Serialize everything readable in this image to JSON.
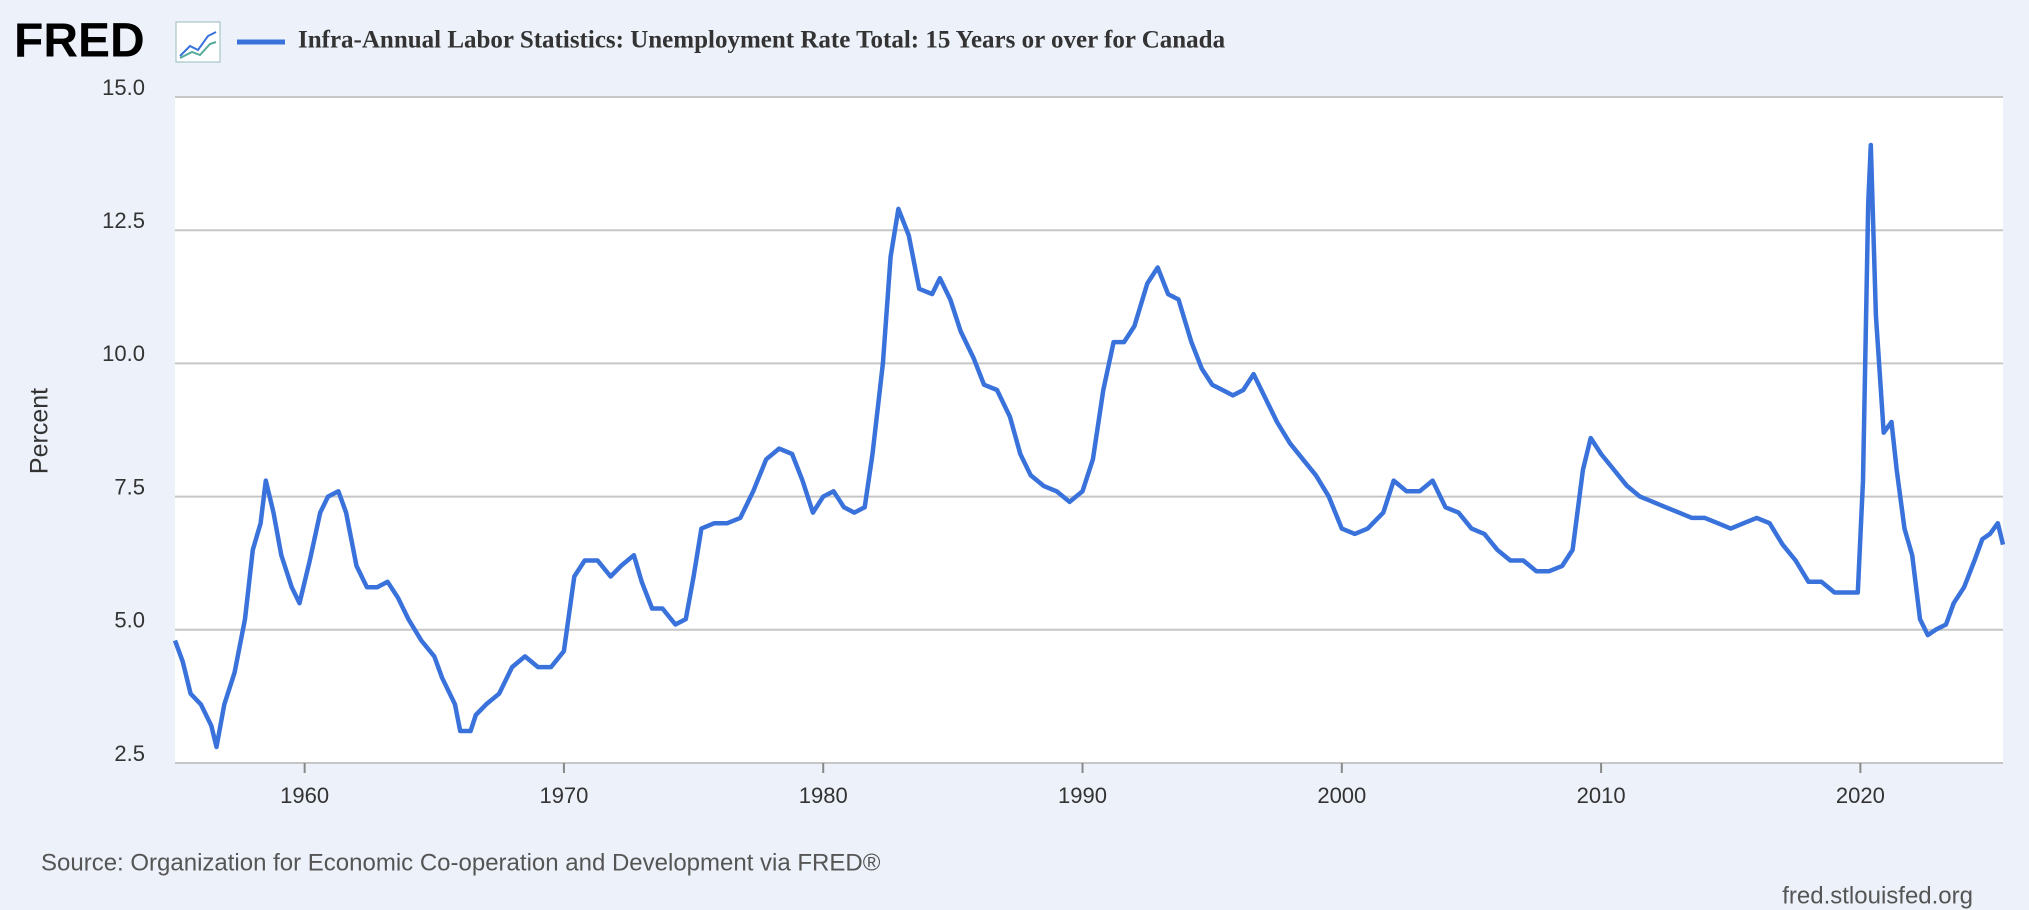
{
  "logo": "FRED",
  "chart_data": {
    "type": "line",
    "title": "Infra-Annual Labor Statistics: Unemployment Rate Total: 15 Years or over for Canada",
    "y_label": "Percent",
    "source": "Source: Organization for Economic Co-operation and Development via FRED®",
    "url": "fred.stlouisfed.org",
    "grid": true,
    "xlim": [
      1955,
      2025.5
    ],
    "xticks": [
      1960,
      1970,
      1980,
      1990,
      2000,
      2010,
      2020
    ],
    "ylim": [
      2.5,
      15
    ],
    "yticks": [
      2.5,
      {
        "value": 5,
        "label": "5.0"
      },
      7.5,
      {
        "value": 10,
        "label": "10.0"
      },
      12.5,
      {
        "value": 15,
        "label": "15.0"
      }
    ],
    "x": [
      1955.0,
      1955.3,
      1955.6,
      1956.0,
      1956.4,
      1956.6,
      1956.9,
      1957.3,
      1957.7,
      1958.0,
      1958.3,
      1958.5,
      1958.8,
      1959.1,
      1959.5,
      1959.8,
      1960.2,
      1960.6,
      1960.9,
      1961.3,
      1961.6,
      1962.0,
      1962.4,
      1962.8,
      1963.2,
      1963.6,
      1964.0,
      1964.5,
      1965.0,
      1965.3,
      1965.8,
      1966.0,
      1966.4,
      1966.6,
      1967.0,
      1967.5,
      1968.0,
      1968.5,
      1969.0,
      1969.5,
      1970.0,
      1970.4,
      1970.8,
      1971.3,
      1971.8,
      1972.2,
      1972.7,
      1973.0,
      1973.4,
      1973.8,
      1974.3,
      1974.7,
      1975.0,
      1975.3,
      1975.8,
      1976.3,
      1976.8,
      1977.3,
      1977.8,
      1978.3,
      1978.8,
      1979.2,
      1979.6,
      1980.0,
      1980.4,
      1980.8,
      1981.2,
      1981.6,
      1981.9,
      1982.3,
      1982.6,
      1982.9,
      1983.3,
      1983.7,
      1984.2,
      1984.5,
      1984.9,
      1985.3,
      1985.8,
      1986.2,
      1986.7,
      1987.2,
      1987.6,
      1988.0,
      1988.5,
      1989.0,
      1989.5,
      1990.0,
      1990.4,
      1990.8,
      1991.2,
      1991.6,
      1992.0,
      1992.5,
      1992.9,
      1993.3,
      1993.7,
      1994.2,
      1994.6,
      1995.0,
      1995.4,
      1995.8,
      1996.2,
      1996.6,
      1997.0,
      1997.5,
      1998.0,
      1998.5,
      1999.0,
      1999.5,
      2000.0,
      2000.5,
      2001.0,
      2001.6,
      2002.0,
      2002.5,
      2003.0,
      2003.5,
      2004.0,
      2004.5,
      2005.0,
      2005.5,
      2006.0,
      2006.5,
      2007.0,
      2007.5,
      2008.0,
      2008.5,
      2008.9,
      2009.3,
      2009.6,
      2010.0,
      2010.5,
      2011.0,
      2011.5,
      2012.0,
      2012.5,
      2013.0,
      2013.5,
      2014.0,
      2014.5,
      2015.0,
      2015.5,
      2016.0,
      2016.5,
      2017.0,
      2017.5,
      2018.0,
      2018.5,
      2019.0,
      2019.5,
      2019.9,
      2020.1,
      2020.3,
      2020.4,
      2020.6,
      2020.9,
      2021.2,
      2021.4,
      2021.7,
      2022.0,
      2022.3,
      2022.6,
      2022.9,
      2023.3,
      2023.6,
      2024.0,
      2024.4,
      2024.7,
      2025.0,
      2025.3,
      2025.5
    ],
    "series": [
      {
        "name": "Infra-Annual Labor Statistics: Unemployment Rate Total: 15 Years or over for Canada",
        "color": "#3a72dc",
        "values": [
          4.8,
          4.4,
          3.8,
          3.6,
          3.2,
          2.8,
          3.6,
          4.2,
          5.2,
          6.5,
          7.0,
          7.8,
          7.2,
          6.4,
          5.8,
          5.5,
          6.3,
          7.2,
          7.5,
          7.6,
          7.2,
          6.2,
          5.8,
          5.8,
          5.9,
          5.6,
          5.2,
          4.8,
          4.5,
          4.1,
          3.6,
          3.1,
          3.1,
          3.4,
          3.6,
          3.8,
          4.3,
          4.5,
          4.3,
          4.3,
          4.6,
          6.0,
          6.3,
          6.3,
          6.0,
          6.2,
          6.4,
          5.9,
          5.4,
          5.4,
          5.1,
          5.2,
          6.0,
          6.9,
          7.0,
          7.0,
          7.1,
          7.6,
          8.2,
          8.4,
          8.3,
          7.8,
          7.2,
          7.5,
          7.6,
          7.3,
          7.2,
          7.3,
          8.3,
          10.0,
          12.0,
          12.9,
          12.4,
          11.4,
          11.3,
          11.6,
          11.2,
          10.6,
          10.1,
          9.6,
          9.5,
          9.0,
          8.3,
          7.9,
          7.7,
          7.6,
          7.4,
          7.6,
          8.2,
          9.5,
          10.4,
          10.4,
          10.7,
          11.5,
          11.8,
          11.3,
          11.2,
          10.4,
          9.9,
          9.6,
          9.5,
          9.4,
          9.5,
          9.8,
          9.4,
          8.9,
          8.5,
          8.2,
          7.9,
          7.5,
          6.9,
          6.8,
          6.9,
          7.2,
          7.8,
          7.6,
          7.6,
          7.8,
          7.3,
          7.2,
          6.9,
          6.8,
          6.5,
          6.3,
          6.3,
          6.1,
          6.1,
          6.2,
          6.5,
          8.0,
          8.6,
          8.3,
          8.0,
          7.7,
          7.5,
          7.4,
          7.3,
          7.2,
          7.1,
          7.1,
          7.0,
          6.9,
          7.0,
          7.1,
          7.0,
          6.6,
          6.3,
          5.9,
          5.9,
          5.7,
          5.7,
          5.7,
          7.8,
          13.0,
          14.1,
          10.9,
          8.7,
          8.9,
          8.0,
          6.9,
          6.4,
          5.2,
          4.9,
          5.0,
          5.1,
          5.5,
          5.8,
          6.3,
          6.7,
          6.8,
          7.0,
          6.6
        ]
      }
    ]
  }
}
